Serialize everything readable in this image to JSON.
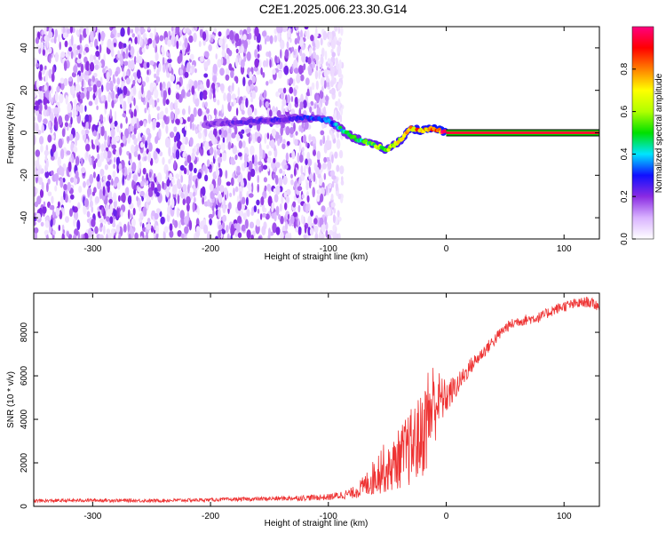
{
  "title": "C2E1.2025.006.23.30.G14",
  "chart_data": [
    {
      "type": "heatmap",
      "title": "C2E1.2025.006.23.30.G14",
      "xlabel": "Height of straight line (km)",
      "ylabel": "Frequency (Hz)",
      "xlim": [
        -350,
        130
      ],
      "ylim": [
        -50,
        50
      ],
      "x_ticks": [
        -300,
        -200,
        -100,
        0,
        100
      ],
      "y_ticks": [
        -40,
        -20,
        0,
        20,
        40
      ],
      "colorbar": {
        "label": "Normalized spectral amplitude",
        "range": [
          0,
          1
        ],
        "ticks": [
          0.0,
          0.2,
          0.4,
          0.6,
          0.8
        ],
        "colors": [
          "#ffffff",
          "#d9b3ff",
          "#8a2be2",
          "#1010ff",
          "#00e5ff",
          "#00e000",
          "#b0ff00",
          "#ffff00",
          "#ff8000",
          "#ff0000",
          "#ff0080"
        ]
      },
      "noise_region_x": [
        -350,
        -88
      ],
      "ridge": {
        "x": [
          -205,
          -150,
          -120,
          -100,
          -90,
          -80,
          -70,
          -60,
          -50,
          -40,
          -30,
          -20,
          -10,
          0,
          130
        ],
        "y": [
          4,
          6,
          7,
          6,
          2,
          -2,
          -4,
          -6,
          -8,
          -4,
          2,
          1,
          2,
          0,
          0
        ],
        "amplitude": [
          0.2,
          0.25,
          0.3,
          0.35,
          0.45,
          0.5,
          0.55,
          0.6,
          0.65,
          0.7,
          0.8,
          0.85,
          0.9,
          0.95,
          1.0
        ]
      },
      "grid": false
    },
    {
      "type": "line",
      "xlabel": "Height of straight line (km)",
      "ylabel": "SNR (10 * v/v)",
      "xlim": [
        -350,
        130
      ],
      "ylim": [
        0,
        9800
      ],
      "x_ticks": [
        -300,
        -200,
        -100,
        0,
        100
      ],
      "y_ticks": [
        0,
        2000,
        4000,
        6000,
        8000
      ],
      "series": [
        {
          "color": "#ee3333",
          "x": [
            -350,
            -300,
            -250,
            -200,
            -150,
            -100,
            -80,
            -70,
            -60,
            -55,
            -50,
            -40,
            -30,
            -20,
            -15,
            -10,
            -5,
            0,
            10,
            20,
            30,
            40,
            50,
            60,
            70,
            80,
            90,
            100,
            110,
            120,
            130
          ],
          "y": [
            250,
            280,
            260,
            300,
            350,
            420,
            600,
            900,
            1400,
            1800,
            1600,
            2200,
            2700,
            3300,
            4200,
            4800,
            4900,
            5000,
            5600,
            6400,
            7000,
            7600,
            8200,
            8500,
            8600,
            8700,
            9000,
            9200,
            9300,
            9400,
            9200
          ],
          "noise_amplitude": [
            80,
            80,
            80,
            80,
            100,
            150,
            250,
            500,
            900,
            1200,
            1000,
            1400,
            1800,
            2000,
            2500,
            2000,
            1200,
            800,
            500,
            400,
            300,
            300,
            250,
            250,
            250,
            250,
            250,
            250,
            250,
            250,
            250
          ]
        }
      ],
      "grid": false
    }
  ]
}
